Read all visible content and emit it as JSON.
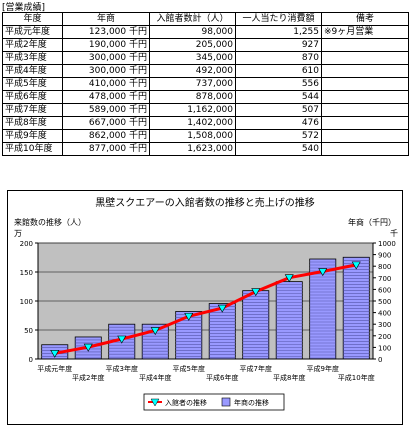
{
  "section_label": "[営業成績]",
  "table": {
    "headers": [
      "年度",
      "年商",
      "入館者数計（人）",
      "一人当たり消費額",
      "備考"
    ],
    "rows": [
      {
        "year": "平成元年度",
        "sales": "123,000 千円",
        "visitors": "98,000",
        "spend": "1,255",
        "note": "※9ヶ月営業"
      },
      {
        "year": "平成2年度",
        "sales": "190,000 千円",
        "visitors": "205,000",
        "spend": "927",
        "note": ""
      },
      {
        "year": "平成3年度",
        "sales": "300,000 千円",
        "visitors": "345,000",
        "spend": "870",
        "note": ""
      },
      {
        "year": "平成4年度",
        "sales": "300,000 千円",
        "visitors": "492,000",
        "spend": "610",
        "note": ""
      },
      {
        "year": "平成5年度",
        "sales": "410,000 千円",
        "visitors": "737,000",
        "spend": "556",
        "note": ""
      },
      {
        "year": "平成6年度",
        "sales": "478,000 千円",
        "visitors": "878,000",
        "spend": "544",
        "note": ""
      },
      {
        "year": "平成7年度",
        "sales": "589,000 千円",
        "visitors": "1,162,000",
        "spend": "507",
        "note": ""
      },
      {
        "year": "平成8年度",
        "sales": "667,000 千円",
        "visitors": "1,402,000",
        "spend": "476",
        "note": ""
      },
      {
        "year": "平成9年度",
        "sales": "862,000 千円",
        "visitors": "1,508,000",
        "spend": "572",
        "note": ""
      },
      {
        "year": "平成10年度",
        "sales": "877,000 千円",
        "visitors": "1,623,000",
        "spend": "540",
        "note": ""
      }
    ]
  },
  "chart_data": {
    "type": "bar",
    "title": "黒壁スクエアーの入館者数の推移と売上げの推移",
    "ylabel_left": "来館数の推移（人）",
    "ylabel_left_unit": "万",
    "ylabel_right": "年商（千円）",
    "ylabel_right_unit": "千",
    "categories": [
      "平成元年度",
      "平成2年度",
      "平成3年度",
      "平成4年度",
      "平成5年度",
      "平成6年度",
      "平成7年度",
      "平成8年度",
      "平成9年度",
      "平成10年度"
    ],
    "left_ticks": [
      "0",
      "50",
      "100",
      "150",
      "200"
    ],
    "right_ticks": [
      "0",
      "100",
      "200",
      "300",
      "400",
      "500",
      "600",
      "700",
      "800",
      "900",
      "1000"
    ],
    "ylim_left": [
      0,
      200
    ],
    "ylim_right": [
      0,
      1000
    ],
    "series": [
      {
        "name": "入館者の推移",
        "type": "line",
        "axis": "left",
        "color": "#ff0000",
        "marker_color": "#00ffff",
        "values": [
          9.8,
          20.5,
          34.5,
          49.2,
          73.7,
          87.8,
          116.2,
          140.2,
          150.8,
          162.3
        ]
      },
      {
        "name": "年商の推移",
        "type": "bar",
        "axis": "right",
        "color": "#9999ff",
        "values": [
          123,
          190,
          300,
          300,
          410,
          478,
          589,
          667,
          862,
          877
        ]
      }
    ],
    "colors": {
      "plot_bg": "#c0c0c0",
      "bar": "#9999ff",
      "line": "#ff0000",
      "marker": "#00ffff"
    }
  }
}
